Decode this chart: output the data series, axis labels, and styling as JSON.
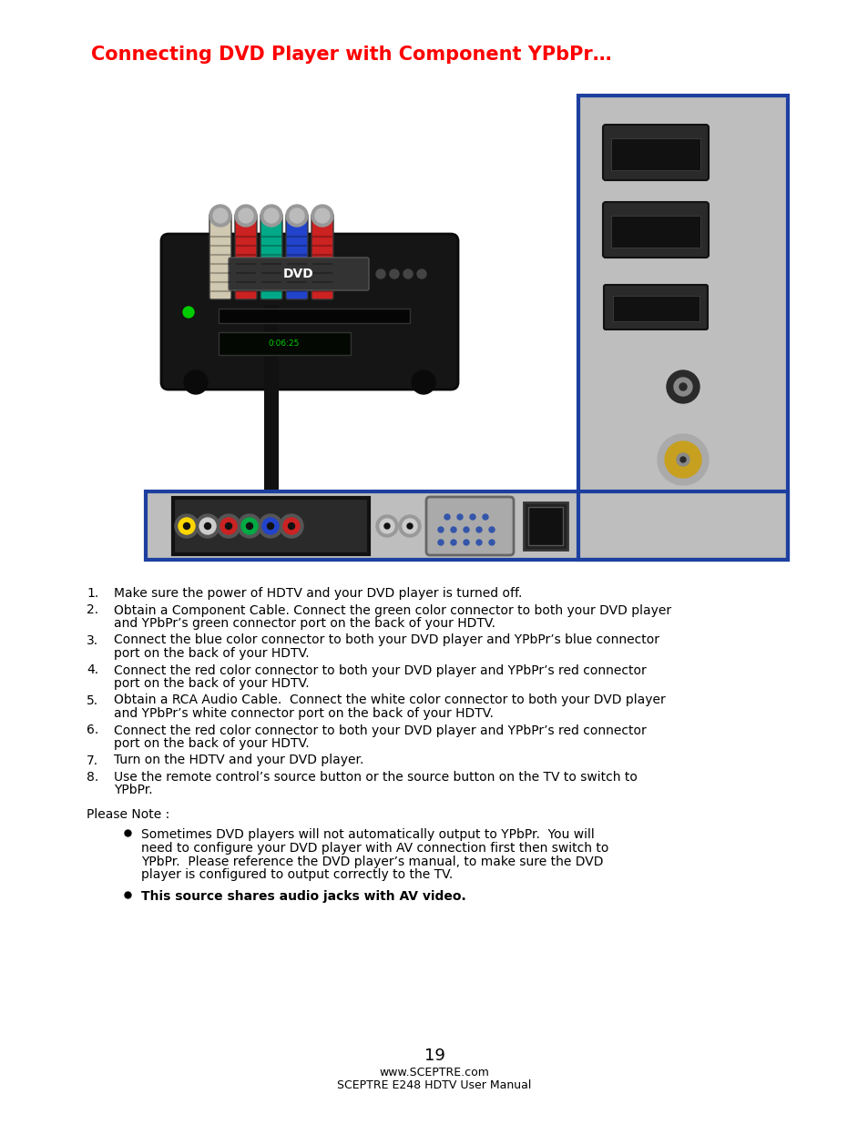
{
  "title": "Connecting DVD Player with Component YPbPr…",
  "title_color": "#FF0000",
  "title_fontsize": 15,
  "title_bold": true,
  "background_color": "#FFFFFF",
  "numbered_items": [
    "Make sure the power of HDTV and your DVD player is turned off.",
    "Obtain a Component Cable. Connect the green color connector to both your DVD player\nand YPbPr’s green connector port on the back of your HDTV.",
    "Connect the blue color connector to both your DVD player and YPbPr’s blue connector\nport on the back of your HDTV.",
    "Connect the red color connector to both your DVD player and YPbPr’s red connector\nport on the back of your HDTV.",
    "Obtain a RCA Audio Cable.  Connect the white color connector to both your DVD player\nand YPbPr’s white connector port on the back of your HDTV.",
    "Connect the red color connector to both your DVD player and YPbPr’s red connector\nport on the back of your HDTV.",
    "Turn on the HDTV and your DVD player.",
    "Use the remote control’s source button or the source button on the TV to switch to\nYPbPr."
  ],
  "please_note": "Please Note :",
  "bullet_items": [
    "Sometimes DVD players will not automatically output to YPbPr.  You will\nneed to configure your DVD player with AV connection first then switch to\nYPbPr.  Please reference the DVD player’s manual, to make sure the DVD\nplayer is configured to output correctly to the TV.",
    "This source shares audio jacks with AV video."
  ],
  "bullet_bold": [
    false,
    true
  ],
  "page_number": "19",
  "footer_line1": "www.SCEPTRE.com",
  "footer_line2": "SCEPTRE E248 HDTV User Manual",
  "text_fontsize": 10,
  "footer_fontsize": 9,
  "page_num_fontsize": 13
}
